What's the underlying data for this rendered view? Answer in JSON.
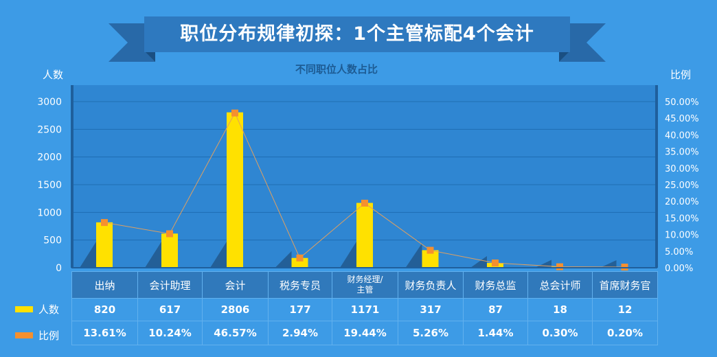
{
  "title": "职位分布规律初探：1个主管标配4个会计",
  "chart_data": {
    "type": "bar",
    "title": "不同职位人数占比",
    "ylabel": "人数",
    "y2label": "比例",
    "ylim": [
      0,
      3000
    ],
    "y2lim": [
      0,
      0.5
    ],
    "yticks": [
      0,
      500,
      1000,
      1500,
      2000,
      2500,
      3000
    ],
    "y2ticks": [
      "0.00%",
      "5.00%",
      "10.00%",
      "15.00%",
      "20.00%",
      "25.00%",
      "30.00%",
      "35.00%",
      "40.00%",
      "45.00%",
      "50.00%"
    ],
    "categories": [
      "出纳",
      "会计助理",
      "会计",
      "税务专员",
      "财务经理/主管",
      "财务负责人",
      "财务总监",
      "总会计师",
      "首席财务官"
    ],
    "series": [
      {
        "name": "人数",
        "type": "bar",
        "color": "#ffe100",
        "values": [
          820,
          617,
          2806,
          177,
          1171,
          317,
          87,
          18,
          12
        ],
        "labels": [
          "820",
          "617",
          "2806",
          "177",
          "1171",
          "317",
          "87",
          "18",
          "12"
        ]
      },
      {
        "name": "比例",
        "type": "line",
        "color": "#f5902f",
        "values": [
          0.1361,
          0.1024,
          0.4657,
          0.0294,
          0.1944,
          0.0526,
          0.0144,
          0.003,
          0.002
        ],
        "labels": [
          "13.61%",
          "10.24%",
          "46.57%",
          "2.94%",
          "19.44%",
          "5.26%",
          "1.44%",
          "0.30%",
          "0.20%"
        ]
      }
    ],
    "grid": true
  },
  "colors": {
    "background": "#3d9be6",
    "plot_bg": "#2f86d2",
    "banner": "#2e6fb0",
    "bar": "#ffe100",
    "line_marker": "#f5902f"
  }
}
